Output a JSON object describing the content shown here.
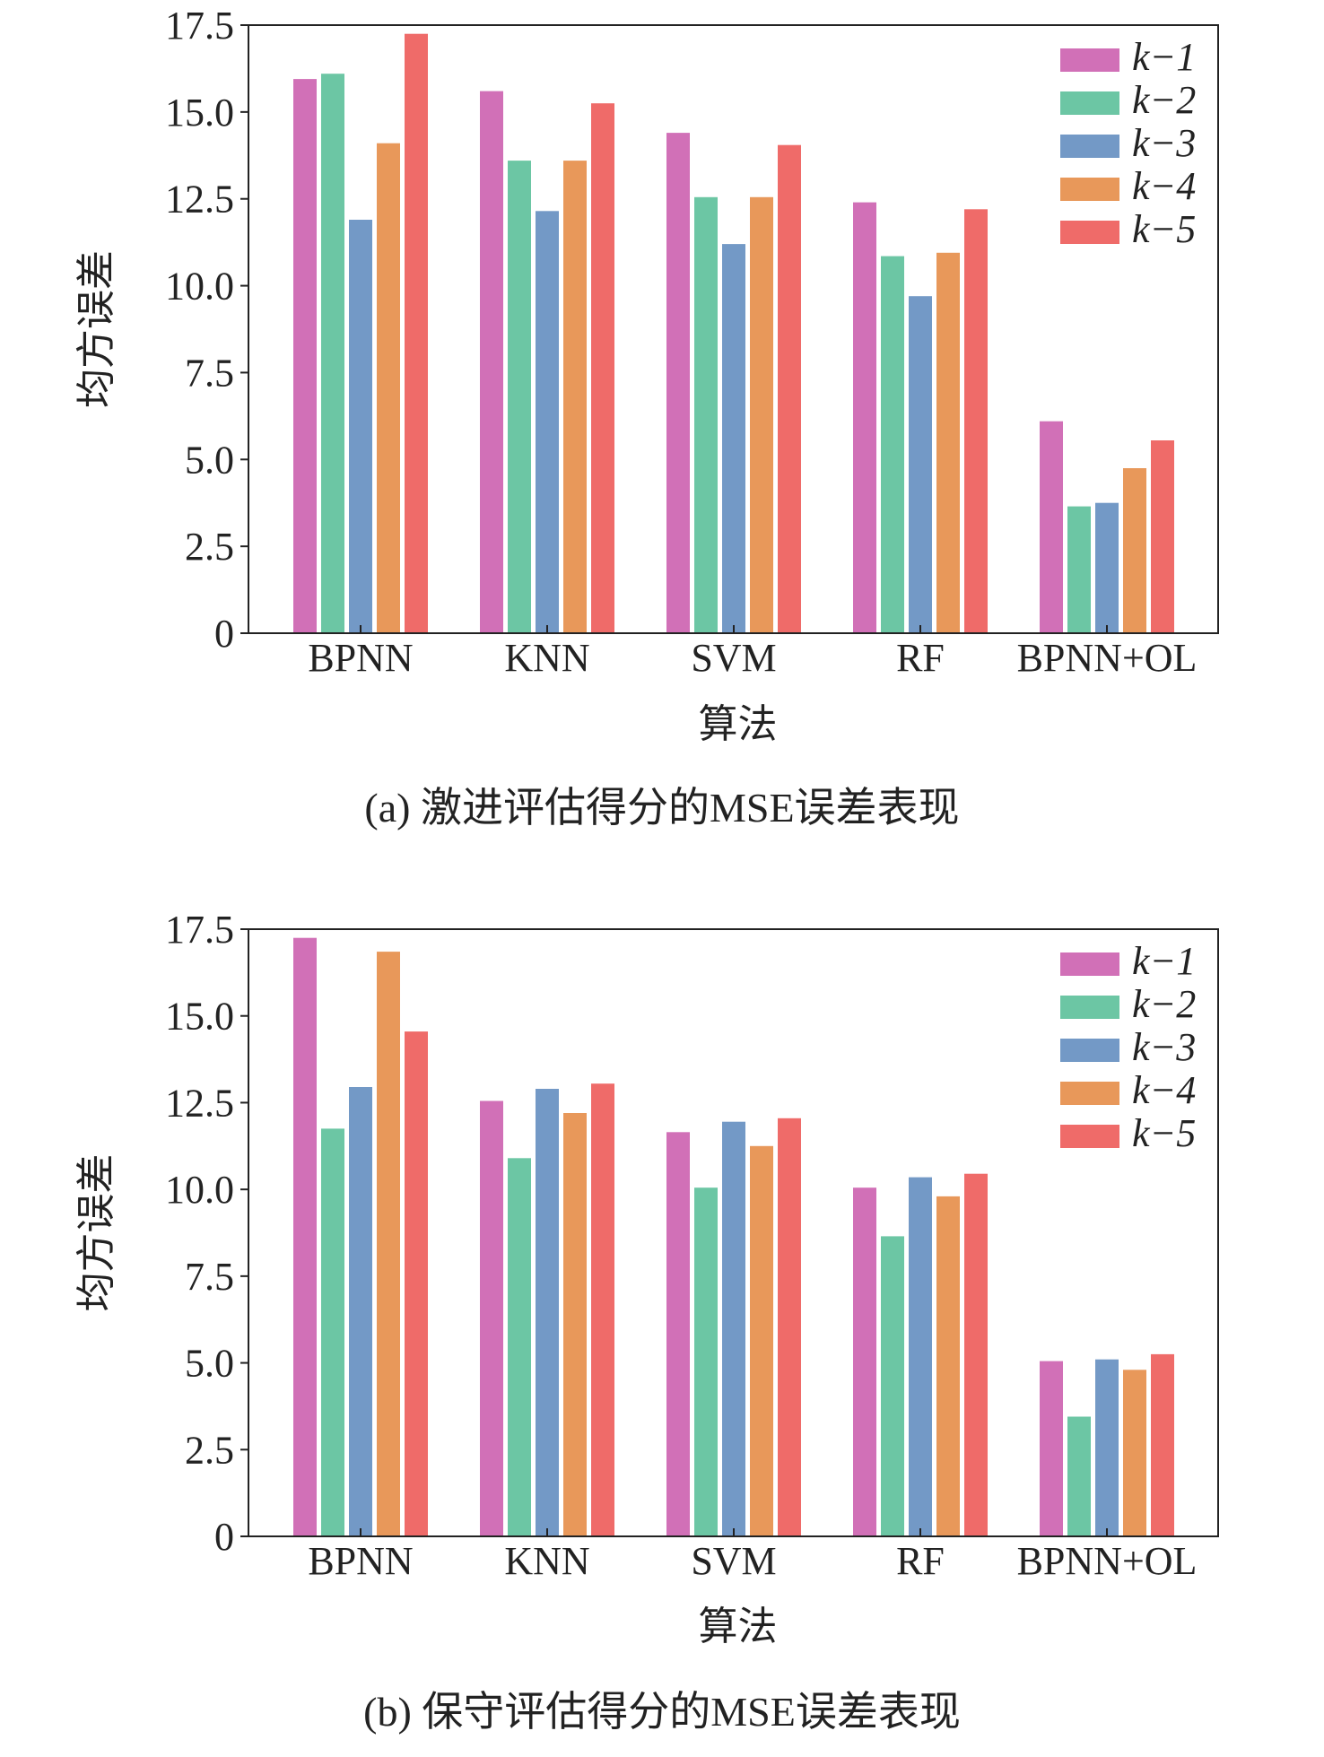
{
  "chart_data": [
    {
      "type": "bar",
      "panel": "a",
      "caption": "(a) 激进评估得分的MSE误差表现",
      "xlabel": "算法",
      "ylabel": "均方误差",
      "ylim": [
        0,
        17.5
      ],
      "yticks": [
        "0",
        "2.5",
        "5.0",
        "7.5",
        "10.0",
        "12.5",
        "15.0",
        "17.5"
      ],
      "legend_position": "top-right",
      "categories": [
        "BPNN",
        "KNN",
        "SVM",
        "RF",
        "BPNN+OL"
      ],
      "series": [
        {
          "name": "k−1",
          "color": "#d170b7",
          "values": [
            15.95,
            15.6,
            14.4,
            12.4,
            6.1
          ]
        },
        {
          "name": "k−2",
          "color": "#6cc6a4",
          "values": [
            16.1,
            13.6,
            12.55,
            10.85,
            3.65
          ]
        },
        {
          "name": "k−3",
          "color": "#7399c6",
          "values": [
            11.9,
            12.15,
            11.2,
            9.7,
            3.75
          ]
        },
        {
          "name": "k−4",
          "color": "#e8985a",
          "values": [
            14.1,
            13.6,
            12.55,
            10.95,
            4.75
          ]
        },
        {
          "name": "k−5",
          "color": "#ef6b69",
          "values": [
            17.25,
            15.25,
            14.05,
            12.2,
            5.55
          ]
        }
      ]
    },
    {
      "type": "bar",
      "panel": "b",
      "caption": "(b) 保守评估得分的MSE误差表现",
      "xlabel": "算法",
      "ylabel": "均方误差",
      "ylim": [
        0,
        17.5
      ],
      "yticks": [
        "0",
        "2.5",
        "5.0",
        "7.5",
        "10.0",
        "12.5",
        "15.0",
        "17.5"
      ],
      "legend_position": "top-right",
      "categories": [
        "BPNN",
        "KNN",
        "SVM",
        "RF",
        "BPNN+OL"
      ],
      "series": [
        {
          "name": "k−1",
          "color": "#d170b7",
          "values": [
            17.25,
            12.55,
            11.65,
            10.05,
            5.05
          ]
        },
        {
          "name": "k−2",
          "color": "#6cc6a4",
          "values": [
            11.75,
            10.9,
            10.05,
            8.65,
            3.45
          ]
        },
        {
          "name": "k−3",
          "color": "#7399c6",
          "values": [
            12.95,
            12.9,
            11.95,
            10.35,
            5.1
          ]
        },
        {
          "name": "k−4",
          "color": "#e8985a",
          "values": [
            16.85,
            12.2,
            11.25,
            9.8,
            4.8
          ]
        },
        {
          "name": "k−5",
          "color": "#ef6b69",
          "values": [
            14.55,
            13.05,
            12.05,
            10.45,
            5.25
          ]
        }
      ]
    }
  ]
}
